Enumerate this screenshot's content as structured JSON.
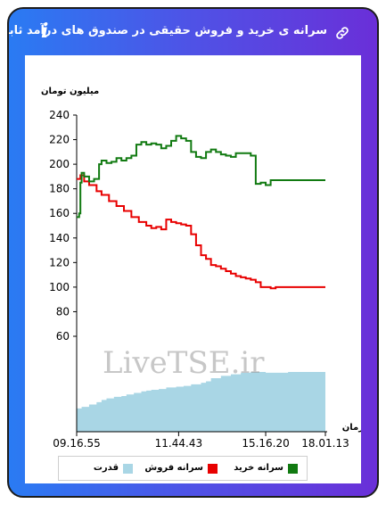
{
  "header": {
    "title": "سرانه ی خرید و فروش حقیقی در صندوق های درآمد ثابت",
    "link_icon": "link-icon",
    "info_icon": "info-icon",
    "info_glyph": "i"
  },
  "watermark": "LiveTSE.ir",
  "colors": {
    "buy": "#117a11",
    "sell": "#e80000",
    "power": "#a9d6e5"
  },
  "chart_data": {
    "type": "line",
    "ylabel": "میلیون تومان",
    "xlabel": "زمان",
    "ylim": [
      0,
      240
    ],
    "yticks": [
      60,
      80,
      100,
      120,
      140,
      160,
      180,
      200,
      220,
      240
    ],
    "x_tick_labels": [
      "09.16.55",
      "11.44.43",
      "15.16.20",
      "18.01.13"
    ],
    "x_tick_positions": [
      0,
      0.41,
      0.76,
      1.0
    ],
    "legend": [
      {
        "name": "سرانه خرید",
        "color": "#117a11"
      },
      {
        "name": "سرانه فروش",
        "color": "#e80000"
      },
      {
        "name": "قدرت",
        "color": "#a9d6e5"
      }
    ],
    "series": [
      {
        "name": "سرانه خرید",
        "x": [
          0,
          0.01,
          0.015,
          0.02,
          0.03,
          0.05,
          0.07,
          0.09,
          0.1,
          0.12,
          0.14,
          0.16,
          0.18,
          0.2,
          0.22,
          0.24,
          0.26,
          0.28,
          0.3,
          0.32,
          0.34,
          0.36,
          0.38,
          0.4,
          0.42,
          0.44,
          0.46,
          0.48,
          0.5,
          0.52,
          0.54,
          0.56,
          0.58,
          0.6,
          0.62,
          0.64,
          0.66,
          0.68,
          0.7,
          0.72,
          0.74,
          0.76,
          0.78,
          0.8,
          0.82,
          1.0
        ],
        "values": [
          157,
          160,
          185,
          193,
          190,
          186,
          188,
          200,
          203,
          201,
          202,
          205,
          203,
          205,
          207,
          216,
          218,
          216,
          217,
          216,
          213,
          215,
          219,
          223,
          221,
          219,
          210,
          206,
          205,
          210,
          212,
          210,
          208,
          207,
          206,
          209,
          209,
          209,
          207,
          184,
          185,
          183,
          187,
          187,
          187,
          187
        ]
      },
      {
        "name": "سرانه فروش",
        "x": [
          0,
          0.015,
          0.03,
          0.05,
          0.08,
          0.1,
          0.13,
          0.16,
          0.19,
          0.22,
          0.25,
          0.28,
          0.3,
          0.32,
          0.34,
          0.36,
          0.38,
          0.4,
          0.42,
          0.44,
          0.46,
          0.48,
          0.5,
          0.52,
          0.54,
          0.56,
          0.58,
          0.6,
          0.62,
          0.64,
          0.66,
          0.68,
          0.7,
          0.72,
          0.74,
          0.76,
          0.78,
          0.8,
          0.82,
          1.0
        ],
        "values": [
          188,
          191,
          186,
          183,
          178,
          175,
          170,
          166,
          162,
          157,
          153,
          150,
          148,
          149,
          147,
          155,
          153,
          152,
          151,
          150,
          143,
          134,
          126,
          123,
          118,
          117,
          115,
          113,
          111,
          109,
          108,
          107,
          106,
          104,
          100,
          100,
          99,
          100,
          100,
          100
        ]
      },
      {
        "name": "قدرت",
        "type": "area",
        "x": [
          0,
          0.02,
          0.05,
          0.08,
          0.1,
          0.12,
          0.15,
          0.18,
          0.2,
          0.23,
          0.26,
          0.28,
          0.3,
          0.33,
          0.36,
          0.4,
          0.43,
          0.46,
          0.5,
          0.52,
          0.54,
          0.58,
          0.62,
          0.66,
          0.7,
          0.74,
          0.76,
          0.8,
          0.85,
          0.9,
          1.0
        ],
        "values": [
          0.3,
          0.32,
          0.35,
          0.38,
          0.41,
          0.43,
          0.45,
          0.46,
          0.48,
          0.5,
          0.52,
          0.53,
          0.54,
          0.55,
          0.57,
          0.58,
          0.59,
          0.61,
          0.63,
          0.65,
          0.69,
          0.72,
          0.74,
          0.76,
          0.77,
          0.77,
          0.76,
          0.76,
          0.77,
          0.77,
          0.77
        ]
      }
    ]
  }
}
